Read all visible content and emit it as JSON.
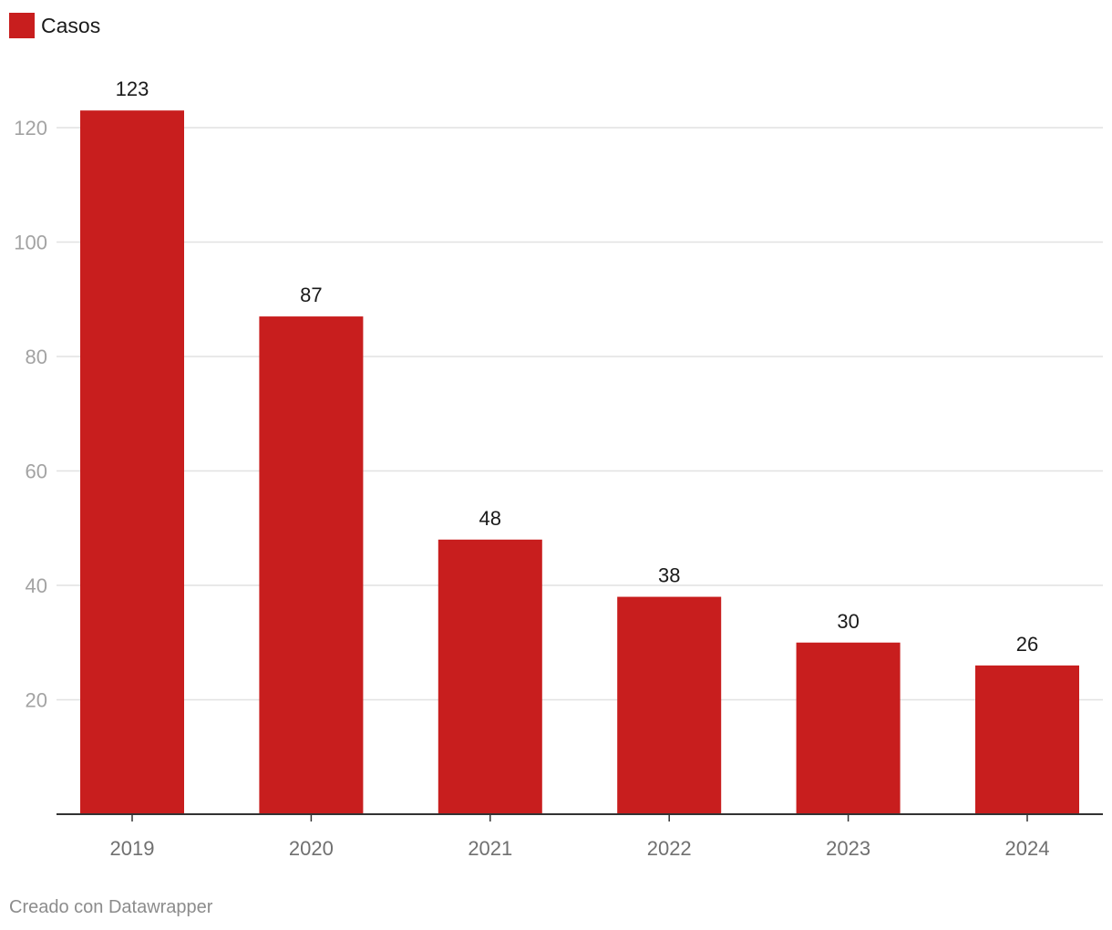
{
  "chart_data": {
    "type": "bar",
    "categories": [
      "2019",
      "2020",
      "2021",
      "2022",
      "2023",
      "2024"
    ],
    "series": [
      {
        "name": "Casos",
        "values": [
          123,
          87,
          48,
          38,
          30,
          26
        ]
      }
    ],
    "ylim": [
      0,
      130
    ],
    "yticks": [
      20,
      40,
      60,
      80,
      100,
      120
    ],
    "grid": true,
    "legend": "top-left",
    "data_labels": true,
    "bar_color": "#c81e1e"
  },
  "footer": {
    "credit": "Creado con Datawrapper"
  }
}
